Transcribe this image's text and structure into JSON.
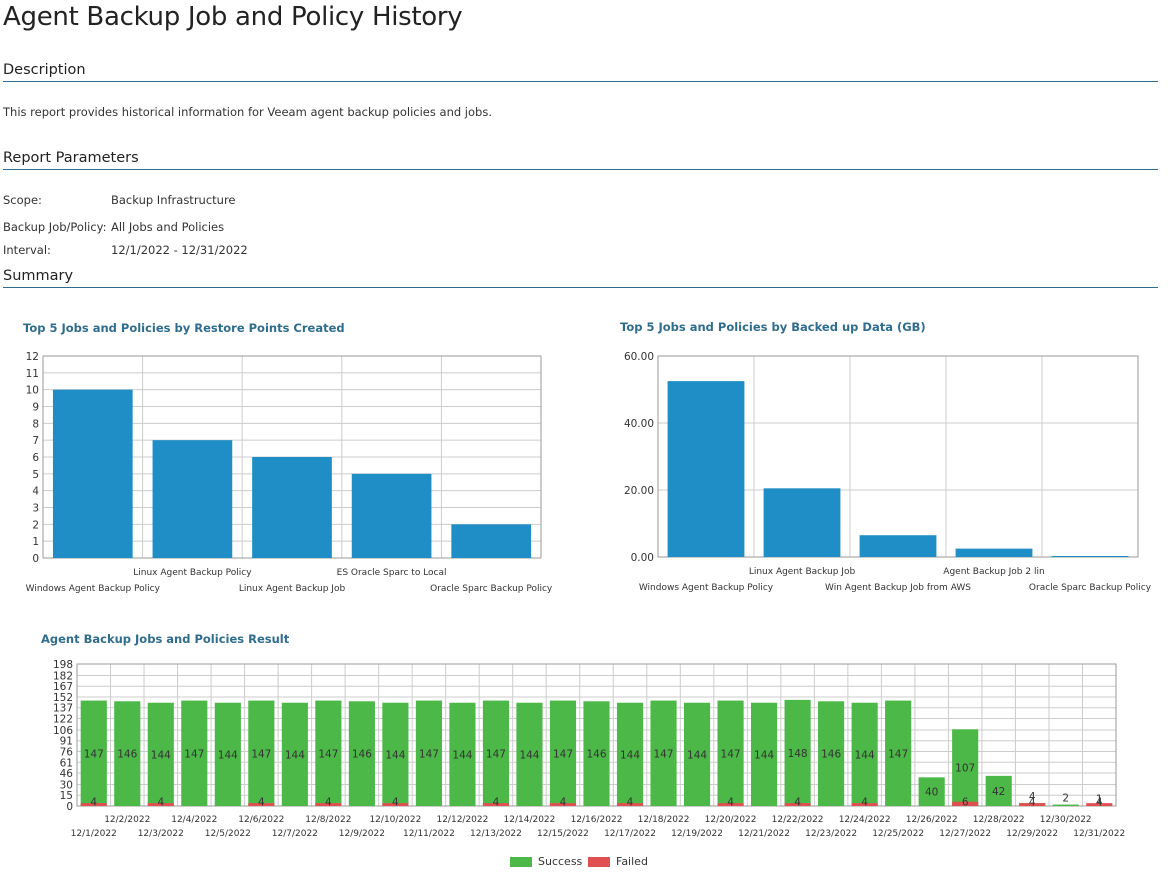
{
  "report": {
    "title": "Agent Backup Job and Policy History",
    "description_heading": "Description",
    "description_text": "This report provides historical information for Veeam agent backup policies and jobs.",
    "parameters_heading": "Report Parameters",
    "parameters": [
      {
        "label": "Scope:",
        "value": "Backup Infrastructure"
      },
      {
        "label": "Backup Job/Policy:",
        "value": "All Jobs and Policies"
      },
      {
        "label": "Interval:",
        "value": "12/1/2022 - 12/31/2022"
      }
    ],
    "summary_heading": "Summary"
  },
  "colors": {
    "bar": "#1f8ec6",
    "success": "#4cb848",
    "failed": "#e05050",
    "heading": "#2f6d8f"
  },
  "chart_data": [
    {
      "type": "bar",
      "title": "Top 5 Jobs and Policies by Restore Points Created",
      "categories": [
        "Windows Agent Backup Policy",
        "Linux Agent Backup Policy",
        "Linux Agent Backup Job",
        "ES Oracle Sparc to Local",
        "Oracle Sparc Backup Policy"
      ],
      "values": [
        10,
        7,
        6,
        5,
        2
      ],
      "ylim": [
        0,
        12
      ],
      "yticks": [
        "0",
        "1",
        "2",
        "3",
        "4",
        "5",
        "6",
        "7",
        "8",
        "9",
        "10",
        "11",
        "12"
      ],
      "grid": true
    },
    {
      "type": "bar",
      "title": "Top 5 Jobs and Policies by Backed up Data (GB)",
      "categories": [
        "Windows Agent Backup Policy",
        "Linux Agent Backup Job",
        "Win Agent Backup Job from AWS",
        "Agent Backup Job 2 lin",
        "Oracle Sparc Backup Policy"
      ],
      "values": [
        52.5,
        20.5,
        6.5,
        2.5,
        0.3
      ],
      "ylim": [
        0,
        60
      ],
      "yticks": [
        "0.00",
        "20.00",
        "40.00",
        "60.00"
      ],
      "grid": true
    },
    {
      "type": "bar",
      "title": "Agent Backup Jobs and Policies Result",
      "stacked": true,
      "categories": [
        "12/1/2022",
        "12/2/2022",
        "12/3/2022",
        "12/4/2022",
        "12/5/2022",
        "12/6/2022",
        "12/7/2022",
        "12/8/2022",
        "12/9/2022",
        "12/10/2022",
        "12/11/2022",
        "12/12/2022",
        "12/13/2022",
        "12/14/2022",
        "12/15/2022",
        "12/16/2022",
        "12/17/2022",
        "12/18/2022",
        "12/19/2022",
        "12/20/2022",
        "12/21/2022",
        "12/22/2022",
        "12/23/2022",
        "12/24/2022",
        "12/25/2022",
        "12/26/2022",
        "12/27/2022",
        "12/28/2022",
        "12/29/2022",
        "12/30/2022",
        "12/31/2022"
      ],
      "series": [
        {
          "name": "Success",
          "values": [
            147,
            146,
            144,
            147,
            144,
            147,
            144,
            147,
            146,
            144,
            147,
            144,
            147,
            144,
            147,
            146,
            144,
            147,
            144,
            147,
            144,
            148,
            146,
            144,
            147,
            40,
            107,
            42,
            4,
            2,
            1
          ],
          "labels": [
            "147",
            "146",
            "144",
            "147",
            "144",
            "147",
            "144",
            "147",
            "146",
            "144",
            "147",
            "144",
            "147",
            "144",
            "147",
            "146",
            "144",
            "147",
            "144",
            "147",
            "144",
            "148",
            "146",
            "144",
            "147",
            "40",
            "107",
            "42",
            "4",
            "2",
            "1"
          ]
        },
        {
          "name": "Failed",
          "values": [
            4,
            0,
            4,
            0,
            0,
            4,
            0,
            4,
            0,
            4,
            0,
            0,
            4,
            0,
            4,
            0,
            4,
            0,
            0,
            4,
            0,
            4,
            0,
            4,
            0,
            0,
            6,
            0,
            4,
            0,
            4
          ],
          "labels": [
            "4",
            "",
            "4",
            "",
            "",
            "4",
            "",
            "4",
            "",
            "4",
            "",
            "",
            "4",
            "",
            "4",
            "",
            "4",
            "",
            "",
            "4",
            "",
            "4",
            "",
            "4",
            "",
            "",
            "6",
            "",
            "4",
            "",
            "4"
          ]
        }
      ],
      "ylim": [
        0,
        198
      ],
      "yticks": [
        "0",
        "15",
        "30",
        "46",
        "61",
        "76",
        "91",
        "106",
        "122",
        "137",
        "152",
        "167",
        "182",
        "198"
      ],
      "grid": true,
      "legend": "bottom"
    }
  ]
}
